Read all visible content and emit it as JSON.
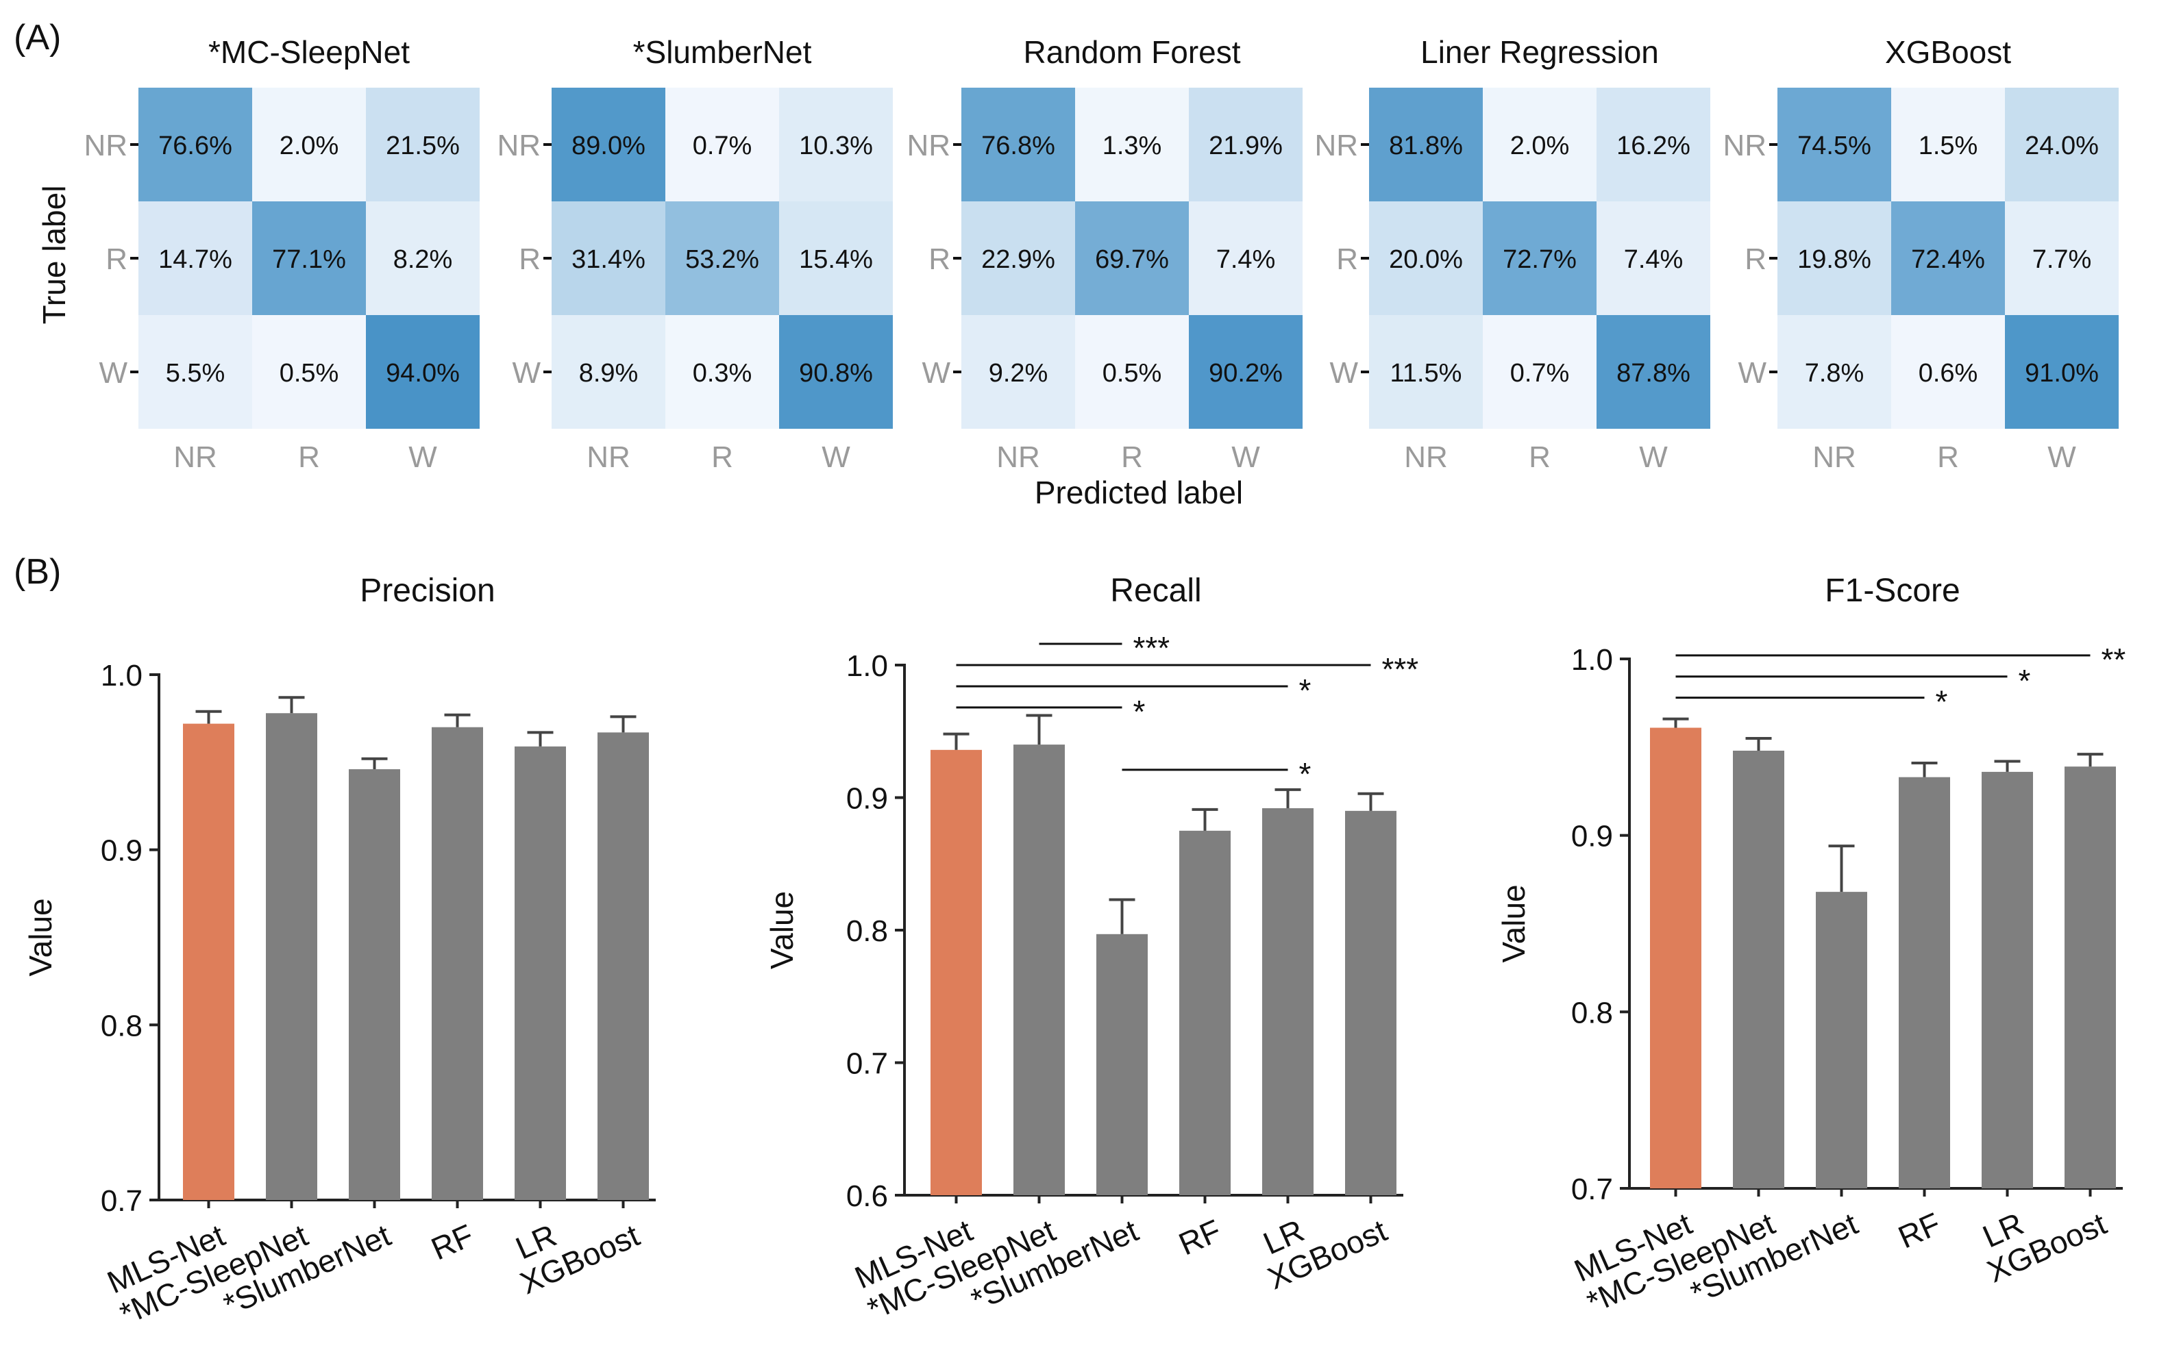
{
  "panel_labels": {
    "a": "(A)",
    "b": "(B)"
  },
  "colors": {
    "highlight_bar": "#DE7E5A",
    "bar": "#7F7F7F",
    "axis": "#222222",
    "tick_label_gray": "#9A9A9A",
    "heat_low": "#F2F7FD",
    "heat_high": "#3E8DC4"
  },
  "confusion": {
    "x_label": "Predicted label",
    "y_label": "True label",
    "classes": [
      "NR",
      "R",
      "W"
    ],
    "matrices": [
      {
        "title": "*MC-SleepNet",
        "cells": [
          [
            "76.6%",
            "2.0%",
            "21.5%"
          ],
          [
            "14.7%",
            "77.1%",
            "8.2%"
          ],
          [
            "5.5%",
            "0.5%",
            "94.0%"
          ]
        ],
        "values": [
          [
            76.6,
            2.0,
            21.5
          ],
          [
            14.7,
            77.1,
            8.2
          ],
          [
            5.5,
            0.5,
            94.0
          ]
        ]
      },
      {
        "title": "*SlumberNet",
        "cells": [
          [
            "89.0%",
            "0.7%",
            "10.3%"
          ],
          [
            "31.4%",
            "53.2%",
            "15.4%"
          ],
          [
            "8.9%",
            "0.3%",
            "90.8%"
          ]
        ],
        "values": [
          [
            89.0,
            0.7,
            10.3
          ],
          [
            31.4,
            53.2,
            15.4
          ],
          [
            8.9,
            0.3,
            90.8
          ]
        ]
      },
      {
        "title": "Random Forest",
        "cells": [
          [
            "76.8%",
            "1.3%",
            "21.9%"
          ],
          [
            "22.9%",
            "69.7%",
            "7.4%"
          ],
          [
            "9.2%",
            "0.5%",
            "90.2%"
          ]
        ],
        "values": [
          [
            76.8,
            1.3,
            21.9
          ],
          [
            22.9,
            69.7,
            7.4
          ],
          [
            9.2,
            0.5,
            90.2
          ]
        ]
      },
      {
        "title": "Liner Regression",
        "cells": [
          [
            "81.8%",
            "2.0%",
            "16.2%"
          ],
          [
            "20.0%",
            "72.7%",
            "7.4%"
          ],
          [
            "11.5%",
            "0.7%",
            "87.8%"
          ]
        ],
        "values": [
          [
            81.8,
            2.0,
            16.2
          ],
          [
            20.0,
            72.7,
            7.4
          ],
          [
            11.5,
            0.7,
            87.8
          ]
        ]
      },
      {
        "title": "XGBoost",
        "cells": [
          [
            "74.5%",
            "1.5%",
            "24.0%"
          ],
          [
            "19.8%",
            "72.4%",
            "7.7%"
          ],
          [
            "7.8%",
            "0.6%",
            "91.0%"
          ]
        ],
        "values": [
          [
            74.5,
            1.5,
            24.0
          ],
          [
            19.8,
            72.4,
            7.7
          ],
          [
            7.8,
            0.6,
            91.0
          ]
        ]
      }
    ]
  },
  "chart_data": [
    {
      "type": "bar",
      "title": "Precision",
      "xlabel": "",
      "ylabel": "Value",
      "ylim": [
        0.7,
        1.0
      ],
      "yticks": [
        0.7,
        0.8,
        0.9,
        1.0
      ],
      "ytick_labels": [
        "0.7",
        "0.8",
        "0.9",
        "1.0"
      ],
      "categories": [
        "MLS-Net",
        "*MC-SleepNet",
        "*SlumberNet",
        "RF",
        "LR",
        "XGBoost"
      ],
      "values": [
        0.972,
        0.978,
        0.946,
        0.97,
        0.959,
        0.967
      ],
      "errors": [
        0.007,
        0.009,
        0.006,
        0.007,
        0.008,
        0.009
      ],
      "highlight_index": 0,
      "significance": []
    },
    {
      "type": "bar",
      "title": "Recall",
      "xlabel": "",
      "ylabel": "Value",
      "ylim": [
        0.6,
        1.0
      ],
      "yticks": [
        0.6,
        0.7,
        0.8,
        0.9,
        1.0
      ],
      "ytick_labels": [
        "0.6",
        "0.7",
        "0.8",
        "0.9",
        "1.0"
      ],
      "categories": [
        "MLS-Net",
        "*MC-SleepNet",
        "*SlumberNet",
        "RF",
        "LR",
        "XGBoost"
      ],
      "values": [
        0.936,
        0.94,
        0.797,
        0.875,
        0.892,
        0.89
      ],
      "errors": [
        0.012,
        0.022,
        0.026,
        0.016,
        0.014,
        0.013
      ],
      "highlight_index": 0,
      "significance": [
        {
          "from": 1,
          "to": 2,
          "label": "***",
          "level": 1.016
        },
        {
          "from": 0,
          "to": 5,
          "label": "***",
          "level": 1.0
        },
        {
          "from": 0,
          "to": 4,
          "label": "*",
          "level": 0.984
        },
        {
          "from": 0,
          "to": 2,
          "label": "*",
          "level": 0.968
        },
        {
          "from": 2,
          "to": 4,
          "label": "*",
          "level": 0.921
        }
      ]
    },
    {
      "type": "bar",
      "title": "F1-Score",
      "xlabel": "",
      "ylabel": "Value",
      "ylim": [
        0.7,
        1.0
      ],
      "yticks": [
        0.7,
        0.8,
        0.9,
        1.0
      ],
      "ytick_labels": [
        "0.7",
        "0.8",
        "0.9",
        "1.0"
      ],
      "categories": [
        "MLS-Net",
        "*MC-SleepNet",
        "*SlumberNet",
        "RF",
        "LR",
        "XGBoost"
      ],
      "values": [
        0.961,
        0.948,
        0.868,
        0.933,
        0.936,
        0.939
      ],
      "errors": [
        0.005,
        0.007,
        0.026,
        0.008,
        0.006,
        0.007
      ],
      "highlight_index": 0,
      "significance": [
        {
          "from": 0,
          "to": 5,
          "label": "**",
          "level": 1.002
        },
        {
          "from": 0,
          "to": 4,
          "label": "*",
          "level": 0.99
        },
        {
          "from": 0,
          "to": 3,
          "label": "*",
          "level": 0.978
        }
      ]
    }
  ]
}
